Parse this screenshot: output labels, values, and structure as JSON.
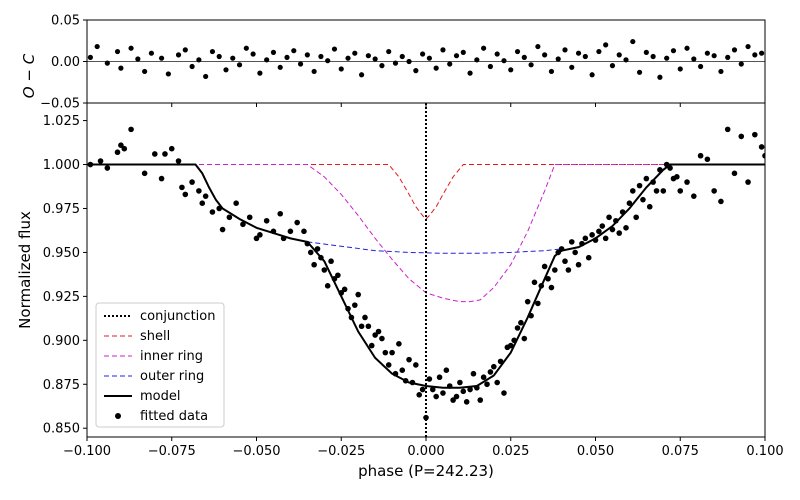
{
  "chart_data": [
    {
      "id": "residuals",
      "type": "scatter",
      "ylabel": "O − C",
      "xlim": [
        -0.1,
        0.1
      ],
      "ylim": [
        -0.05,
        0.05
      ],
      "yticks": [
        -0.05,
        0.0,
        0.05
      ],
      "ytick_labels": [
        "−0.05",
        "0.00",
        "0.05"
      ],
      "reference_line": 0.0,
      "x": [
        -0.099,
        -0.097,
        -0.094,
        -0.091,
        -0.09,
        -0.087,
        -0.085,
        -0.083,
        -0.081,
        -0.078,
        -0.076,
        -0.073,
        -0.071,
        -0.069,
        -0.067,
        -0.065,
        -0.063,
        -0.061,
        -0.059,
        -0.057,
        -0.055,
        -0.053,
        -0.051,
        -0.049,
        -0.047,
        -0.045,
        -0.043,
        -0.041,
        -0.039,
        -0.037,
        -0.035,
        -0.033,
        -0.031,
        -0.029,
        -0.027,
        -0.025,
        -0.023,
        -0.021,
        -0.019,
        -0.017,
        -0.015,
        -0.013,
        -0.011,
        -0.009,
        -0.007,
        -0.005,
        -0.003,
        -0.001,
        0.001,
        0.003,
        0.005,
        0.007,
        0.009,
        0.011,
        0.013,
        0.015,
        0.017,
        0.019,
        0.021,
        0.023,
        0.025,
        0.027,
        0.029,
        0.031,
        0.033,
        0.035,
        0.037,
        0.039,
        0.041,
        0.043,
        0.045,
        0.047,
        0.049,
        0.051,
        0.053,
        0.055,
        0.057,
        0.059,
        0.061,
        0.063,
        0.065,
        0.067,
        0.069,
        0.071,
        0.073,
        0.075,
        0.077,
        0.079,
        0.081,
        0.083,
        0.085,
        0.087,
        0.089,
        0.091,
        0.093,
        0.095,
        0.097,
        0.099
      ],
      "y": [
        0.005,
        0.018,
        -0.002,
        0.012,
        -0.008,
        0.016,
        0.003,
        -0.012,
        0.01,
        0.004,
        -0.015,
        0.008,
        0.014,
        -0.006,
        0.002,
        -0.018,
        0.012,
        0.006,
        -0.01,
        0.004,
        -0.004,
        0.016,
        0.009,
        -0.014,
        0.002,
        0.011,
        -0.007,
        0.005,
        0.013,
        -0.003,
        0.008,
        -0.012,
        0.006,
        0.001,
        0.015,
        -0.009,
        0.004,
        0.01,
        -0.016,
        0.007,
        0.003,
        -0.005,
        0.012,
        -0.002,
        0.006,
        0.0,
        -0.011,
        0.009,
        0.004,
        -0.008,
        0.014,
        -0.003,
        0.007,
        0.011,
        -0.014,
        0.002,
        0.016,
        -0.006,
        0.009,
        0.001,
        -0.01,
        0.012,
        0.005,
        -0.004,
        0.018,
        0.008,
        -0.012,
        0.003,
        0.014,
        -0.007,
        0.01,
        0.006,
        -0.016,
        0.012,
        0.02,
        -0.005,
        0.008,
        0.002,
        0.024,
        -0.013,
        0.011,
        0.006,
        -0.019,
        0.004,
        0.013,
        -0.009,
        0.016,
        0.003,
        -0.006,
        0.01,
        0.007,
        -0.012,
        0.005,
        0.014,
        -0.003,
        0.018,
        0.008,
        0.01
      ]
    },
    {
      "id": "lightcurve",
      "type": "scatter+line",
      "xlabel": "phase (P=242.23)",
      "ylabel": "Normalized flux",
      "xlim": [
        -0.1,
        0.1
      ],
      "ylim": [
        0.845,
        1.035
      ],
      "xticks": [
        -0.1,
        -0.075,
        -0.05,
        -0.025,
        0.0,
        0.025,
        0.05,
        0.075,
        0.1
      ],
      "xtick_labels": [
        "−0.100",
        "−0.075",
        "−0.050",
        "−0.025",
        "0.000",
        "0.025",
        "0.050",
        "0.075",
        "0.100"
      ],
      "yticks": [
        0.85,
        0.875,
        0.9,
        0.925,
        0.95,
        0.975,
        1.0,
        1.025
      ],
      "ytick_labels": [
        "0.850",
        "0.875",
        "0.900",
        "0.925",
        "0.950",
        "0.975",
        "1.000",
        "1.025"
      ],
      "conjunction": 0.0,
      "legend_location": "lower-left",
      "legend": [
        "conjunction",
        "shell",
        "inner ring",
        "outer ring",
        "model",
        "fitted data"
      ],
      "series": [
        {
          "name": "shell",
          "style": "dashed",
          "color": "#e41a1c",
          "x": [
            -0.1,
            -0.011,
            -0.008,
            -0.005,
            -0.003,
            -0.001,
            0.0,
            0.001,
            0.003,
            0.005,
            0.008,
            0.011,
            0.1
          ],
          "y": [
            1.0,
            1.0,
            0.993,
            0.983,
            0.976,
            0.971,
            0.969,
            0.971,
            0.976,
            0.983,
            0.993,
            1.0,
            1.0
          ]
        },
        {
          "name": "inner ring",
          "style": "dashed",
          "color": "#cc22cc",
          "x": [
            -0.1,
            -0.035,
            -0.03,
            -0.025,
            -0.02,
            -0.015,
            -0.01,
            -0.005,
            0.0,
            0.005,
            0.01,
            0.013,
            0.016,
            0.02,
            0.025,
            0.03,
            0.035,
            0.038,
            0.1
          ],
          "y": [
            1.0,
            1.0,
            0.993,
            0.983,
            0.971,
            0.958,
            0.946,
            0.935,
            0.927,
            0.924,
            0.922,
            0.922,
            0.923,
            0.93,
            0.943,
            0.962,
            0.985,
            1.0,
            1.0
          ]
        },
        {
          "name": "outer ring",
          "style": "dashed",
          "color": "#2222dd",
          "x": [
            -0.035,
            -0.025,
            -0.015,
            -0.005,
            0.005,
            0.015,
            0.025,
            0.035,
            0.04
          ],
          "y": [
            0.956,
            0.9535,
            0.951,
            0.95,
            0.9495,
            0.9495,
            0.95,
            0.951,
            0.952
          ]
        },
        {
          "name": "model",
          "style": "solid",
          "color": "#000000",
          "x": [
            -0.1,
            -0.068,
            -0.066,
            -0.064,
            -0.062,
            -0.06,
            -0.055,
            -0.05,
            -0.045,
            -0.04,
            -0.035,
            -0.03,
            -0.025,
            -0.02,
            -0.015,
            -0.01,
            -0.005,
            0.0,
            0.005,
            0.01,
            0.015,
            0.02,
            0.025,
            0.03,
            0.035,
            0.038,
            0.04,
            0.045,
            0.05,
            0.055,
            0.06,
            0.065,
            0.07,
            0.072,
            0.1
          ],
          "y": [
            1.0,
            1.0,
            0.995,
            0.987,
            0.98,
            0.975,
            0.969,
            0.964,
            0.961,
            0.958,
            0.956,
            0.945,
            0.925,
            0.905,
            0.89,
            0.881,
            0.876,
            0.874,
            0.873,
            0.873,
            0.874,
            0.88,
            0.893,
            0.913,
            0.935,
            0.948,
            0.951,
            0.953,
            0.958,
            0.965,
            0.975,
            0.987,
            0.997,
            1.0,
            1.0
          ]
        }
      ],
      "fitted_data": {
        "x": [
          -0.099,
          -0.096,
          -0.094,
          -0.091,
          -0.09,
          -0.089,
          -0.087,
          -0.083,
          -0.08,
          -0.078,
          -0.077,
          -0.075,
          -0.073,
          -0.072,
          -0.071,
          -0.069,
          -0.067,
          -0.066,
          -0.065,
          -0.063,
          -0.061,
          -0.06,
          -0.058,
          -0.056,
          -0.054,
          -0.052,
          -0.05,
          -0.049,
          -0.047,
          -0.045,
          -0.043,
          -0.042,
          -0.04,
          -0.038,
          -0.036,
          -0.035,
          -0.034,
          -0.033,
          -0.032,
          -0.031,
          -0.03,
          -0.029,
          -0.028,
          -0.027,
          -0.026,
          -0.025,
          -0.024,
          -0.023,
          -0.022,
          -0.021,
          -0.02,
          -0.019,
          -0.018,
          -0.017,
          -0.016,
          -0.015,
          -0.014,
          -0.013,
          -0.012,
          -0.011,
          -0.01,
          -0.009,
          -0.008,
          -0.007,
          -0.006,
          -0.005,
          -0.004,
          -0.003,
          -0.002,
          -0.001,
          0.0,
          0.001,
          0.002,
          0.003,
          0.004,
          0.005,
          0.006,
          0.007,
          0.008,
          0.009,
          0.01,
          0.011,
          0.012,
          0.013,
          0.014,
          0.015,
          0.016,
          0.017,
          0.018,
          0.019,
          0.02,
          0.021,
          0.022,
          0.023,
          0.024,
          0.025,
          0.026,
          0.027,
          0.028,
          0.029,
          0.03,
          0.031,
          0.032,
          0.033,
          0.034,
          0.035,
          0.036,
          0.037,
          0.038,
          0.039,
          0.04,
          0.041,
          0.042,
          0.043,
          0.044,
          0.045,
          0.046,
          0.047,
          0.048,
          0.049,
          0.05,
          0.051,
          0.052,
          0.053,
          0.054,
          0.055,
          0.056,
          0.057,
          0.058,
          0.059,
          0.06,
          0.061,
          0.062,
          0.063,
          0.064,
          0.065,
          0.066,
          0.067,
          0.068,
          0.069,
          0.07,
          0.071,
          0.072,
          0.073,
          0.074,
          0.075,
          0.077,
          0.079,
          0.081,
          0.083,
          0.085,
          0.087,
          0.089,
          0.091,
          0.093,
          0.095,
          0.097,
          0.099,
          0.1
        ],
        "y": [
          1.0,
          1.002,
          0.998,
          1.007,
          1.011,
          1.009,
          1.02,
          0.995,
          1.006,
          0.992,
          1.006,
          1.009,
          1.002,
          0.987,
          0.983,
          0.99,
          0.985,
          0.978,
          0.982,
          0.973,
          0.975,
          0.963,
          0.97,
          0.978,
          0.966,
          0.97,
          0.958,
          0.96,
          0.968,
          0.962,
          0.972,
          0.958,
          0.962,
          0.967,
          0.962,
          0.955,
          0.95,
          0.943,
          0.952,
          0.947,
          0.94,
          0.931,
          0.945,
          0.935,
          0.937,
          0.927,
          0.929,
          0.918,
          0.913,
          0.92,
          0.926,
          0.908,
          0.913,
          0.908,
          0.897,
          0.903,
          0.905,
          0.901,
          0.893,
          0.886,
          0.893,
          0.881,
          0.898,
          0.883,
          0.877,
          0.889,
          0.876,
          0.886,
          0.869,
          0.872,
          0.856,
          0.878,
          0.872,
          0.868,
          0.879,
          0.87,
          0.883,
          0.874,
          0.866,
          0.868,
          0.876,
          0.871,
          0.865,
          0.872,
          0.881,
          0.873,
          0.866,
          0.879,
          0.875,
          0.882,
          0.885,
          0.876,
          0.888,
          0.87,
          0.896,
          0.897,
          0.9,
          0.907,
          0.91,
          0.901,
          0.922,
          0.914,
          0.933,
          0.921,
          0.931,
          0.942,
          0.935,
          0.93,
          0.94,
          0.95,
          0.952,
          0.945,
          0.94,
          0.956,
          0.95,
          0.943,
          0.955,
          0.958,
          0.947,
          0.96,
          0.957,
          0.962,
          0.965,
          0.958,
          0.97,
          0.963,
          0.968,
          0.961,
          0.973,
          0.964,
          0.978,
          0.985,
          0.97,
          0.988,
          0.98,
          0.992,
          0.976,
          0.99,
          0.985,
          0.997,
          0.985,
          1.0,
          0.998,
          0.992,
          0.993,
          0.985,
          0.99,
          0.982,
          1.005,
          1.003,
          0.985,
          0.979,
          1.02,
          0.995,
          1.016,
          0.99,
          1.017,
          1.01,
          1.005
        ]
      }
    }
  ]
}
